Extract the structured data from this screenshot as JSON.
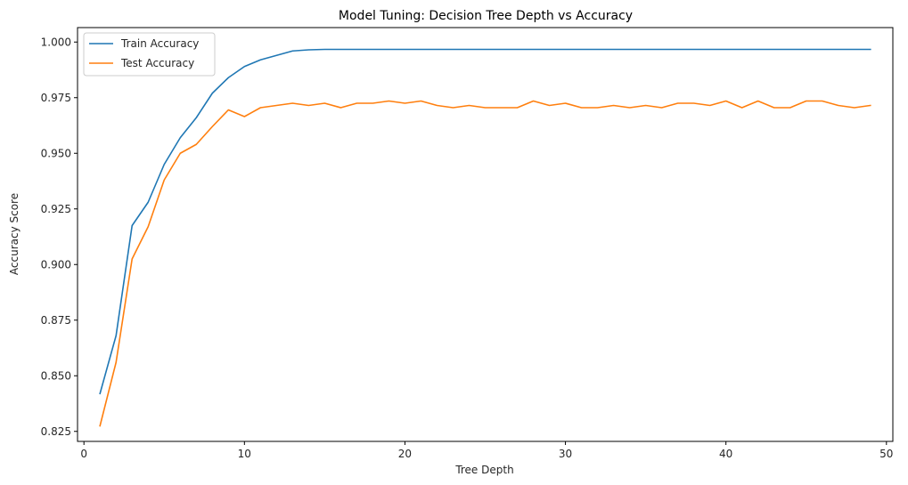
{
  "chart_data": {
    "type": "line",
    "title": "Model Tuning: Decision Tree Depth vs Accuracy",
    "xlabel": "Tree Depth",
    "ylabel": "Accuracy Score",
    "xlim": [
      -0.4,
      50.4
    ],
    "ylim": [
      0.8205,
      1.0065
    ],
    "xticks": [
      0,
      10,
      20,
      30,
      40,
      50
    ],
    "yticks": [
      0.825,
      0.85,
      0.875,
      0.9,
      0.925,
      0.95,
      0.975,
      1.0
    ],
    "ytick_labels": [
      "0.825",
      "0.850",
      "0.875",
      "0.900",
      "0.925",
      "0.950",
      "0.975",
      "1.000"
    ],
    "grid": false,
    "legend_position": "top-left",
    "x": [
      1,
      2,
      3,
      4,
      5,
      6,
      7,
      8,
      9,
      10,
      11,
      12,
      13,
      14,
      15,
      16,
      17,
      18,
      19,
      20,
      21,
      22,
      23,
      24,
      25,
      26,
      27,
      28,
      29,
      30,
      31,
      32,
      33,
      34,
      35,
      36,
      37,
      38,
      39,
      40,
      41,
      42,
      43,
      44,
      45,
      46,
      47,
      48,
      49
    ],
    "series": [
      {
        "name": "Train Accuracy",
        "color": "#1f77b4",
        "values": [
          0.842,
          0.868,
          0.9175,
          0.928,
          0.945,
          0.957,
          0.966,
          0.977,
          0.984,
          0.989,
          0.992,
          0.994,
          0.996,
          0.9965,
          0.9967,
          0.9967,
          0.9967,
          0.9967,
          0.9967,
          0.9967,
          0.9967,
          0.9967,
          0.9967,
          0.9967,
          0.9967,
          0.9967,
          0.9967,
          0.9967,
          0.9967,
          0.9967,
          0.9967,
          0.9967,
          0.9967,
          0.9967,
          0.9967,
          0.9967,
          0.9967,
          0.9967,
          0.9967,
          0.9967,
          0.9967,
          0.9967,
          0.9967,
          0.9967,
          0.9967,
          0.9967,
          0.9967,
          0.9967,
          0.9967
        ]
      },
      {
        "name": "Test Accuracy",
        "color": "#ff7f0e",
        "values": [
          0.8275,
          0.856,
          0.9025,
          0.917,
          0.938,
          0.95,
          0.954,
          0.962,
          0.9695,
          0.9665,
          0.9705,
          0.9715,
          0.9725,
          0.9715,
          0.9725,
          0.9705,
          0.9725,
          0.9725,
          0.9735,
          0.9725,
          0.9735,
          0.9715,
          0.9705,
          0.9715,
          0.9705,
          0.9705,
          0.9705,
          0.9735,
          0.9715,
          0.9725,
          0.9705,
          0.9705,
          0.9715,
          0.9705,
          0.9715,
          0.9705,
          0.9725,
          0.9725,
          0.9715,
          0.9735,
          0.9705,
          0.9735,
          0.9705,
          0.9705,
          0.9735,
          0.9735,
          0.9715,
          0.9705,
          0.9715
        ]
      }
    ]
  }
}
